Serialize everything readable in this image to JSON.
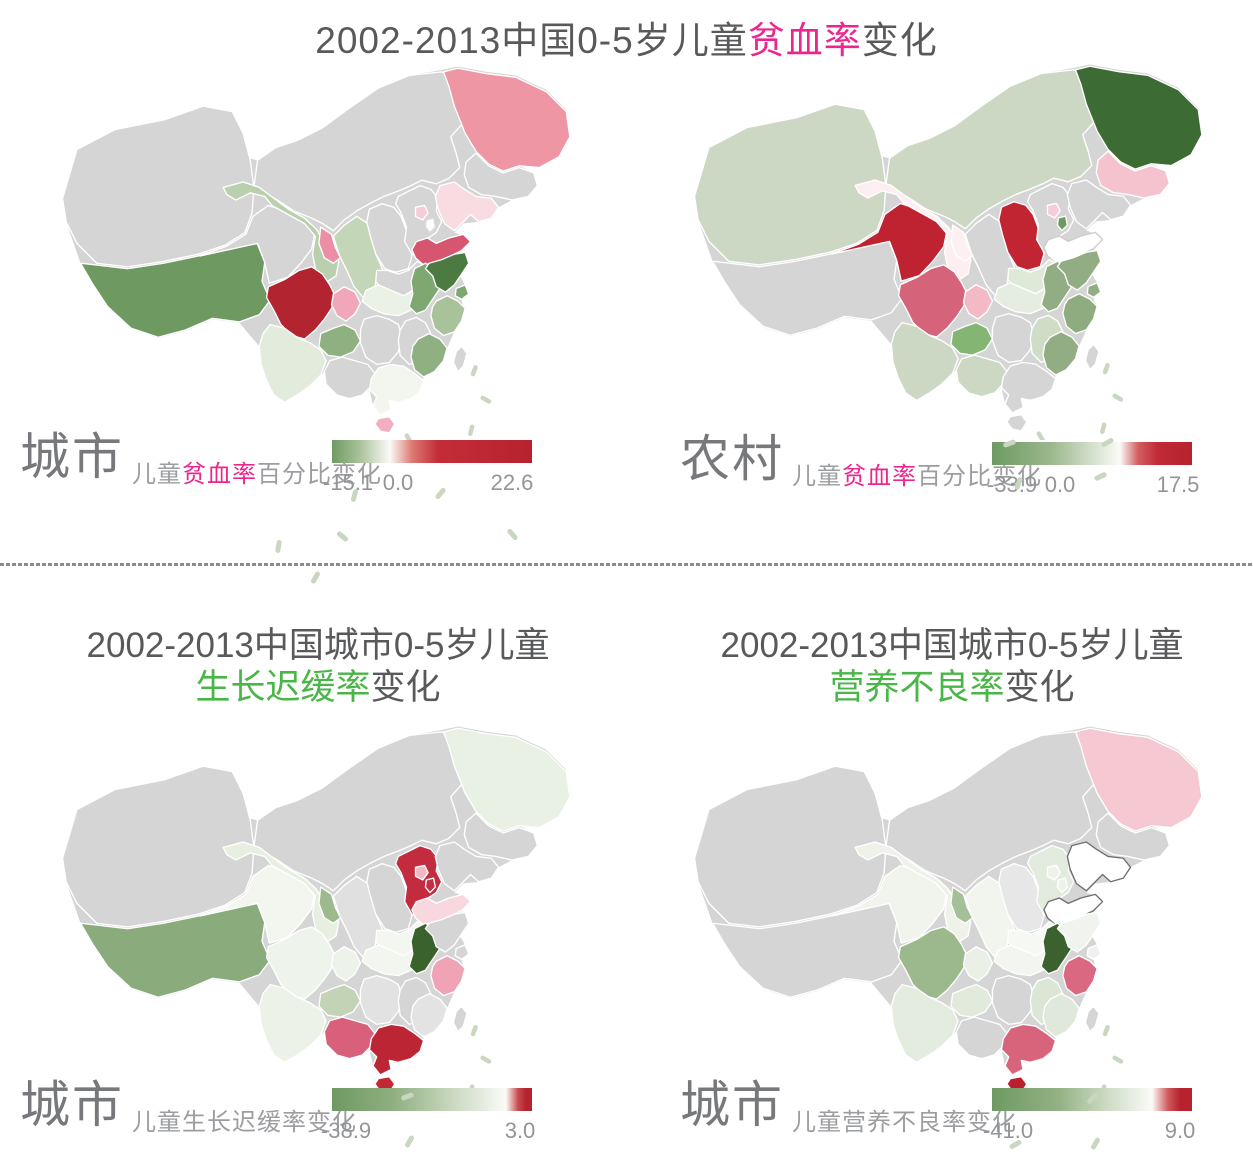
{
  "page": {
    "background": "#ffffff",
    "divider_color": "#8d8d8d",
    "island_dash_color": "#c9d6c0"
  },
  "titles": {
    "main": [
      {
        "text": "2002-2013中国0-5岁儿童",
        "color": "#58595b"
      },
      {
        "text": "贫血率",
        "color": "#ec268e"
      },
      {
        "text": "变化",
        "color": "#58595b"
      }
    ],
    "bottom_left_line1": [
      {
        "text": "2002-2013中国城市0-5岁儿童",
        "color": "#58595b"
      }
    ],
    "bottom_left_line2": [
      {
        "text": "生长迟缓率",
        "color": "#4bb648"
      },
      {
        "text": "变化",
        "color": "#58595b"
      }
    ],
    "bottom_right_line1": [
      {
        "text": "2002-2013中国城市0-5岁儿童",
        "color": "#58595b"
      }
    ],
    "bottom_right_line2": [
      {
        "text": "营养不良率",
        "color": "#4bb648"
      },
      {
        "text": "变化",
        "color": "#58595b"
      }
    ]
  },
  "chart_data": [
    {
      "type": "heatmap",
      "geo": "china-provinces-choropleth",
      "area_label": "城市",
      "metric_parts": [
        {
          "text": "儿童",
          "color": "#9b9da0"
        },
        {
          "text": "贫血率",
          "color": "#ec268e"
        },
        {
          "text": "百分比变化",
          "color": "#9b9da0"
        }
      ],
      "colorbar": {
        "min": -15.1,
        "zero": 0.0,
        "max": 22.6,
        "labels": [
          {
            "text": "-15.1",
            "pos": 0.08
          },
          {
            "text": "0.0",
            "pos": 0.33
          },
          {
            "text": "22.6",
            "pos": 0.9
          }
        ],
        "stops": [
          [
            "#6e9a62",
            0
          ],
          [
            "#a9c29a",
            0.14
          ],
          [
            "#fbfbf8",
            0.29
          ],
          [
            "#dd7a72",
            0.4
          ],
          [
            "#c22d38",
            0.53
          ],
          [
            "#b7222f",
            1
          ]
        ]
      },
      "na_color": "#d5d5d6",
      "province_fills": {
        "XJ": "#d5d5d6",
        "TB": "#6e9a62",
        "QH": "#d5d5d6",
        "GS": "#b9cfad",
        "NM": "#d5d5d6",
        "HLJ": "#ee96a4",
        "JL": "#d5d5d6",
        "LN": "#f9dce2",
        "BJ": "#f6ccd6",
        "TJ": "#fefefe",
        "HEB": "#d5d5d6",
        "SX": "#d5d5d6",
        "SD": "#d5566e",
        "HEN": "#d5d5d6",
        "SN": "#c3d6b7",
        "NX": "#ec8fa6",
        "JS": "#4c7a40",
        "AH": "#7ea772",
        "SH": "#7ea772",
        "ZJ": "#a8c29a",
        "FJ": "#8fb080",
        "JX": "#d5d5d6",
        "HUB": "#eaf1e5",
        "CQ": "#f0a8b8",
        "SC": "#b12430",
        "GZ": "#8fb080",
        "YN": "#e3ecdc",
        "HUN": "#d5d5d6",
        "GX": "#d5d5d6",
        "GD": "#f2f6ef",
        "HI": "#f3afc0",
        "TW": "#d5d5d6"
      },
      "province_strokes": {
        "TJ": "#dddddd"
      }
    },
    {
      "type": "heatmap",
      "geo": "china-provinces-choropleth",
      "area_label": "农村",
      "metric_parts": [
        {
          "text": "儿童",
          "color": "#9b9da0"
        },
        {
          "text": "贫血率",
          "color": "#ec268e"
        },
        {
          "text": "百分比变化",
          "color": "#9b9da0"
        }
      ],
      "colorbar": {
        "min": -33.9,
        "zero": 0.0,
        "max": 17.5,
        "labels": [
          {
            "text": "-33.9",
            "pos": 0.1
          },
          {
            "text": "0.0",
            "pos": 0.34
          },
          {
            "text": "17.5",
            "pos": 0.93
          }
        ],
        "stops": [
          [
            "#6e9a62",
            0
          ],
          [
            "#9cb88e",
            0.3
          ],
          [
            "#fbfbf8",
            0.64
          ],
          [
            "#d35f62",
            0.73
          ],
          [
            "#bf2a36",
            0.83
          ],
          [
            "#b7222f",
            1
          ]
        ]
      },
      "na_color": "#d5d5d6",
      "province_fills": {
        "XJ": "#ccd8c3",
        "TB": "#d5d5d6",
        "QH": "#bf2230",
        "GS": "#fdeef1",
        "NM": "#ccd8c3",
        "HLJ": "#3d6b34",
        "JL": "#f5c3cd",
        "LN": "#d5d5d6",
        "BJ": "#f7ccd7",
        "TJ": "#6e9a62",
        "HEB": "#d5d5d6",
        "SX": "#c22532",
        "SD": "#ffffff",
        "HEN": "#dfe9d8",
        "SN": "#d5d5d6",
        "NX": "#fdf0f2",
        "JS": "#92ad84",
        "AH": "#92ad84",
        "SH": "#92ad84",
        "ZJ": "#8fac80",
        "FJ": "#92ad84",
        "JX": "#cfdcc6",
        "HUB": "#e4ede0",
        "CQ": "#f3b9c5",
        "SC": "#d56379",
        "GZ": "#84b573",
        "YN": "#ccd8c3",
        "HUN": "#d5d5d6",
        "GX": "#ccd8c3",
        "GD": "#d5d5d6",
        "HI": "#d5d5d6",
        "TW": "#d5d5d6"
      },
      "province_strokes": {
        "SD": "#cccccc"
      }
    },
    {
      "type": "heatmap",
      "geo": "china-provinces-choropleth",
      "area_label": "城市",
      "metric_parts": [
        {
          "text": "儿童生长迟缓率变化",
          "color": "#9b9da0"
        }
      ],
      "colorbar": {
        "min": -38.9,
        "max": 3.0,
        "labels": [
          {
            "text": "-38.9",
            "pos": 0.07
          },
          {
            "text": "3.0",
            "pos": 0.94
          }
        ],
        "stops": [
          [
            "#6e9a62",
            0
          ],
          [
            "#8fae80",
            0.3
          ],
          [
            "#c9d8bf",
            0.6
          ],
          [
            "#fbfbf8",
            0.87
          ],
          [
            "#c84b50",
            0.93
          ],
          [
            "#b7222f",
            0.97
          ],
          [
            "#b7222f",
            1
          ]
        ]
      },
      "na_color": "#d5d5d6",
      "province_fills": {
        "XJ": "#d5d5d6",
        "TB": "#8aab7b",
        "QH": "#f2f6ee",
        "GS": "#e7efe1",
        "NM": "#d5d5d6",
        "HLJ": "#e9f0e4",
        "JL": "#d5d5d6",
        "LN": "#d5d5d6",
        "BJ": "#f2b8c4",
        "TJ": "#c22f44",
        "HEB": "#c32c3e",
        "SX": "#d5d5d6",
        "SD": "#f8d7de",
        "HEN": "#f4f7f0",
        "SN": "#e0e0e1",
        "NX": "#9cba8e",
        "JS": "#d5d5d6",
        "AH": "#39622d",
        "SH": "#d5d5d6",
        "ZJ": "#efa3b5",
        "FJ": "#e3e3e3",
        "JX": "#d5d5d6",
        "HUB": "#f2f6ee",
        "CQ": "#edf3e9",
        "SC": "#eef4eb",
        "GZ": "#c2d3b6",
        "YN": "#edf2e8",
        "HUN": "#e2e2e3",
        "GX": "#d9607a",
        "GD": "#bc2534",
        "HI": "#c22734",
        "TW": "#d5d5d6"
      },
      "province_strokes": {}
    },
    {
      "type": "heatmap",
      "geo": "china-provinces-choropleth",
      "area_label": "城市",
      "metric_parts": [
        {
          "text": "儿童营养不良率变化",
          "color": "#9b9da0"
        }
      ],
      "colorbar": {
        "min": -41.0,
        "max": 9.0,
        "labels": [
          {
            "text": "-41.0",
            "pos": 0.08
          },
          {
            "text": "9.0",
            "pos": 0.94
          }
        ],
        "stops": [
          [
            "#6e9a62",
            0
          ],
          [
            "#93b184",
            0.33
          ],
          [
            "#d2dfca",
            0.6
          ],
          [
            "#fbfbf8",
            0.8
          ],
          [
            "#d05a5c",
            0.88
          ],
          [
            "#b7222f",
            0.94
          ],
          [
            "#b7222f",
            1
          ]
        ]
      },
      "na_color": "#d5d5d6",
      "province_fills": {
        "XJ": "#d5d5d6",
        "TB": "#d5d5d6",
        "QH": "#f0f4ec",
        "GS": "#eef2e9",
        "NM": "#d5d5d6",
        "HLJ": "#f6c9d2",
        "JL": "#d5d5d6",
        "LN": "#ffffff",
        "BJ": "#eef2ea",
        "TJ": "#eef2ea",
        "HEB": "#e3ebde",
        "SX": "#e7e7e8",
        "SD": "#ffffff",
        "HEN": "#f6f8f3",
        "SN": "#f1f5ed",
        "NX": "#a5bf97",
        "JS": "#f1f4ee",
        "AH": "#3a612e",
        "SH": "#f0f0f0",
        "ZJ": "#d96880",
        "FJ": "#dfe8da",
        "JX": "#dce6d5",
        "HUB": "#f3f6f0",
        "CQ": "#eaf0e5",
        "SC": "#9cb88d",
        "GZ": "#e2eadc",
        "YN": "#e4ecdf",
        "HUN": "#d5d5d6",
        "GX": "#d5d5d6",
        "GD": "#d8647c",
        "HI": "#bb1f2e",
        "TW": "#d5d5d6"
      },
      "province_strokes": {
        "LN": "#6f6f6f",
        "SD": "#6f6f6f"
      }
    }
  ]
}
